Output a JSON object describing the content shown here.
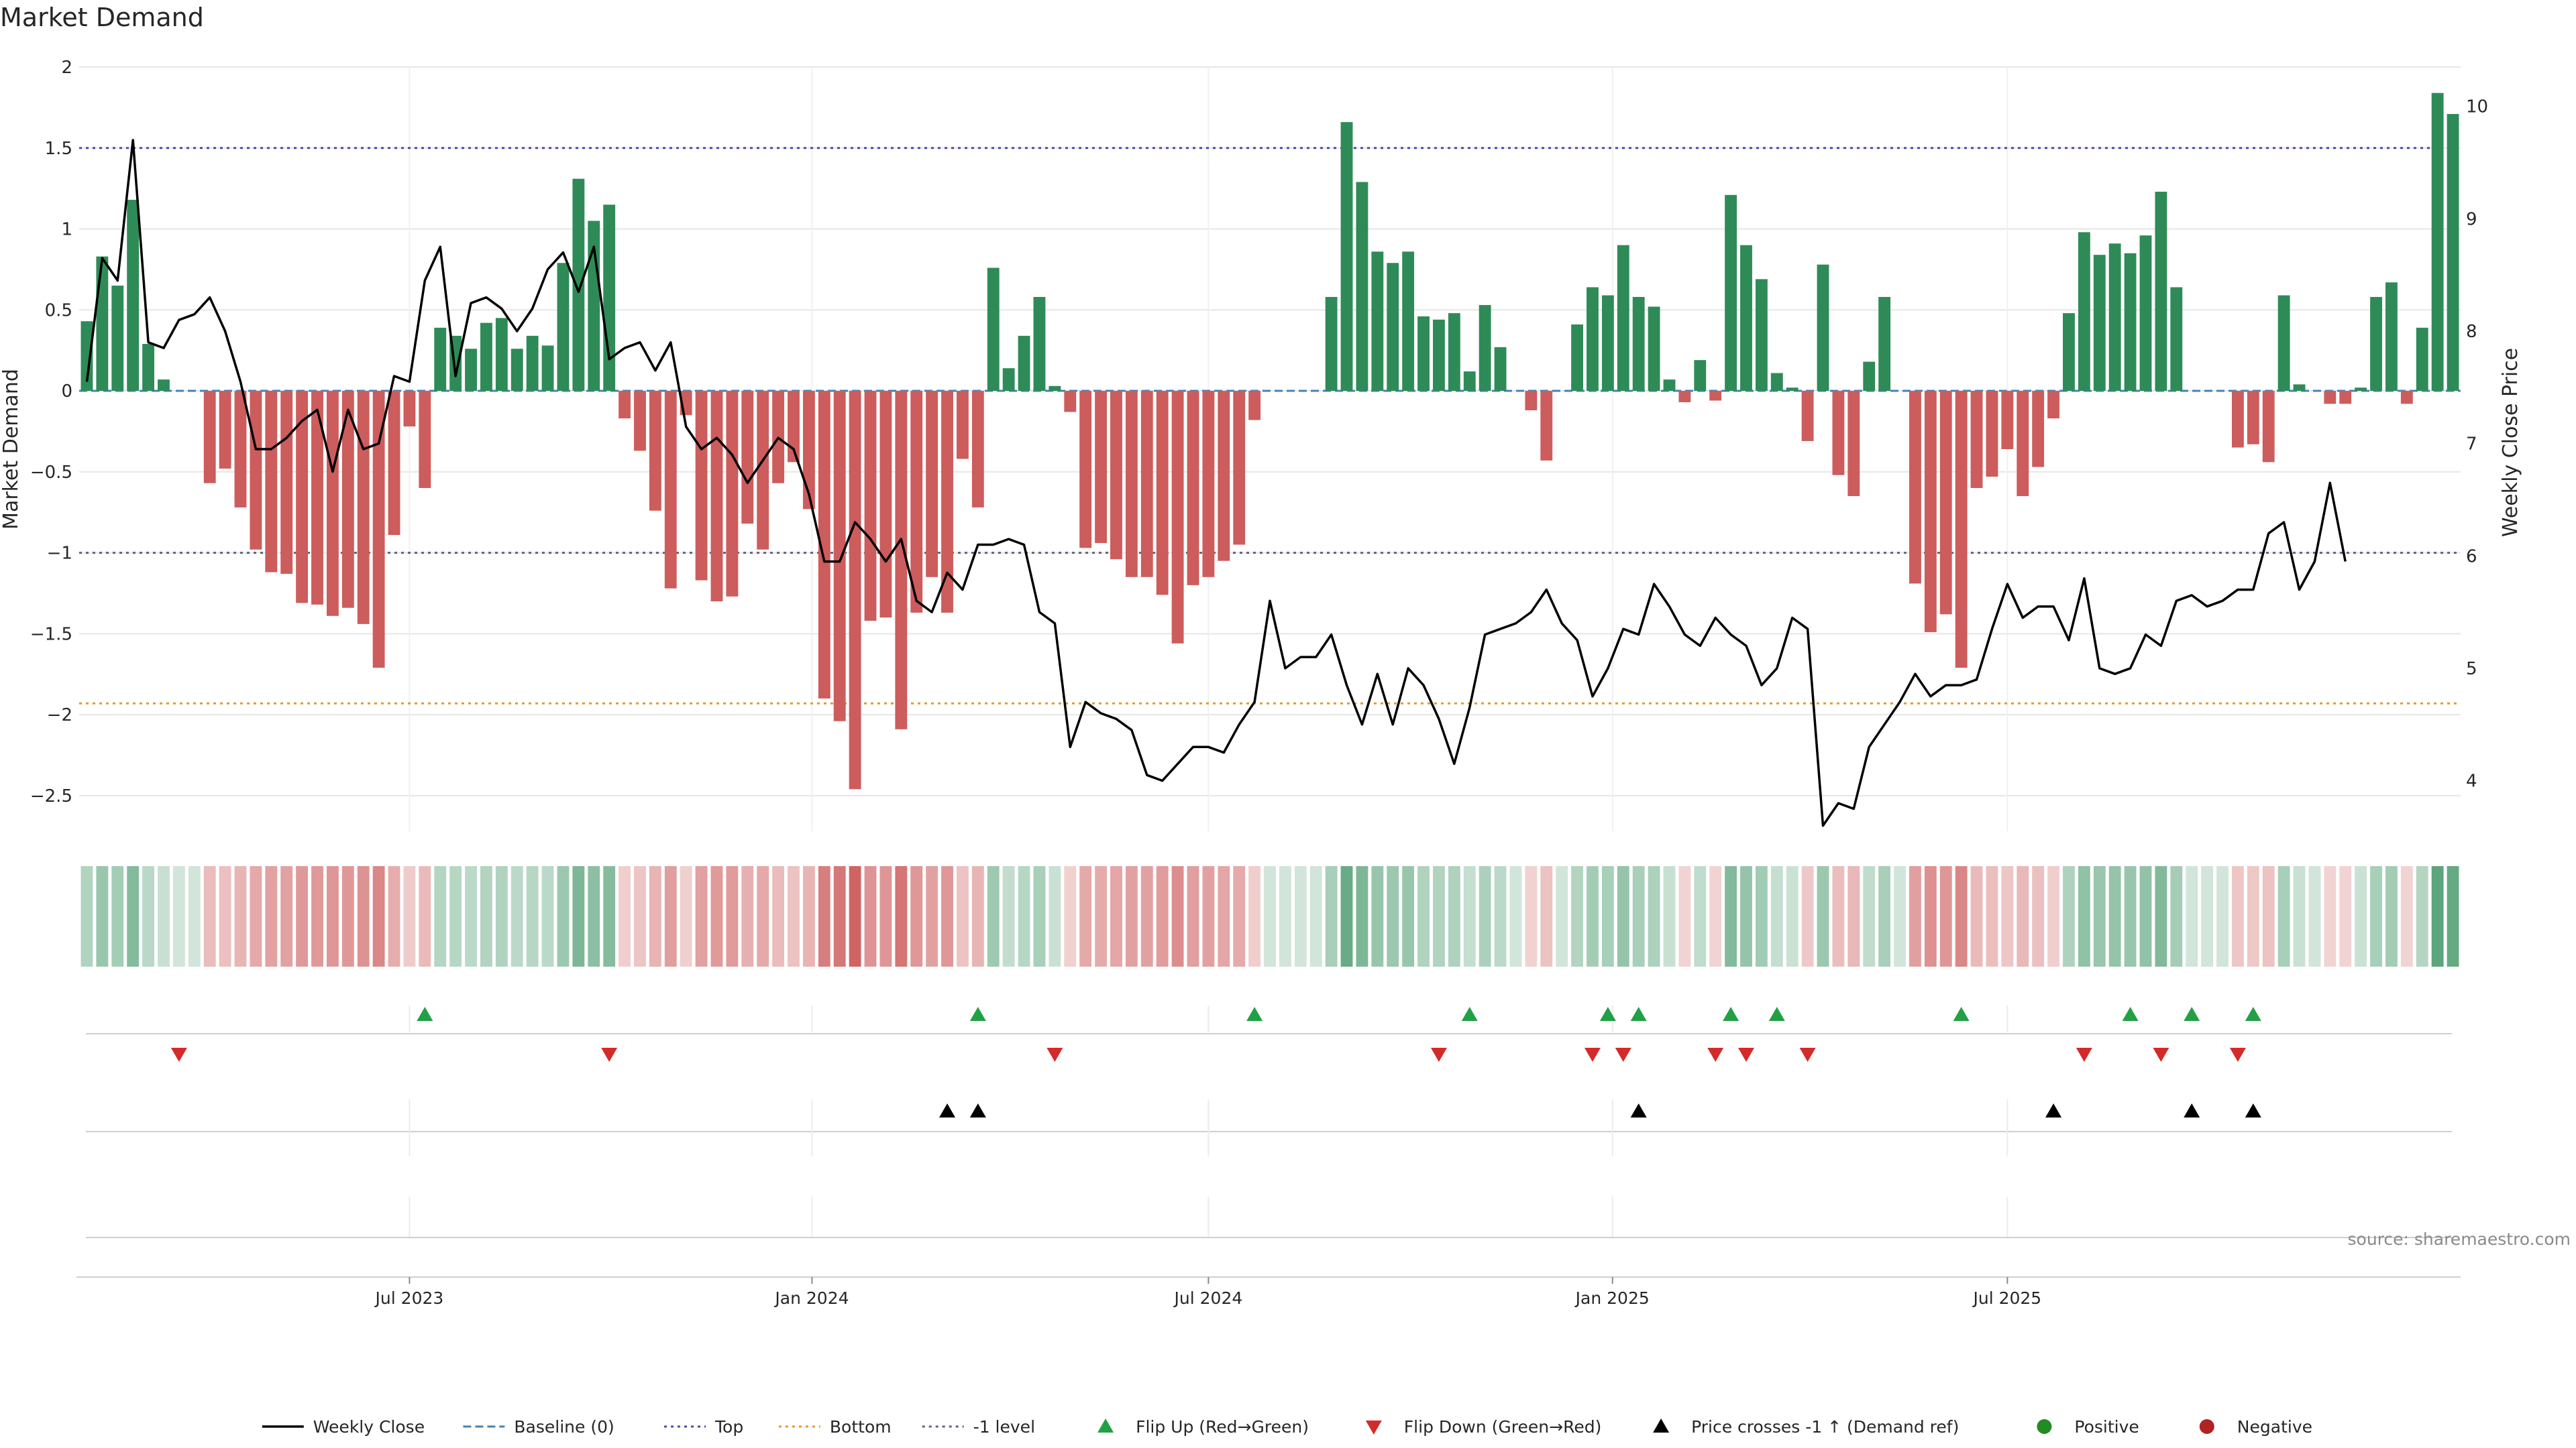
{
  "title": "Market Demand",
  "source": "source: sharemaestro.com",
  "colors": {
    "positive": "#2e8b57",
    "negative": "#cd5c5c",
    "price": "#000000",
    "baseline": "#4682b4",
    "top": "#4b4bb0",
    "bottom": "#e39a2b",
    "minus1": "#606080",
    "flip_up": "#22a045",
    "flip_down": "#d42a2a",
    "cross": "#000000",
    "grid": "#e6e6e6"
  },
  "chart_data": {
    "type": "bar",
    "title": "Market Demand",
    "ylabel_left": "Market Demand",
    "ylabel_right": "Weekly Close Price",
    "ylim_left": [
      -2.72,
      2.0
    ],
    "ylim_right": [
      3.55,
      10.35
    ],
    "yticks_left": [
      2,
      1.5,
      1,
      0.5,
      0,
      -0.5,
      -1,
      -1.5,
      -2,
      -2.5
    ],
    "ytick_labels_left": [
      "2",
      "1.5",
      "1",
      "0.5",
      "0",
      "−0.5",
      "−1",
      "−1.5",
      "−2",
      "−2.5"
    ],
    "yticks_right": [
      10,
      9,
      8,
      7,
      6,
      5,
      4
    ],
    "ytick_labels_right": [
      "10",
      "9",
      "8",
      "7",
      "6",
      "5",
      "4"
    ],
    "reference_lines": {
      "baseline": 0,
      "top": 1.5,
      "bottom": -1.93,
      "minus_one": -1
    },
    "x_ticks": [
      {
        "index": 21.5,
        "label": "Jul 2023"
      },
      {
        "index": 47.7,
        "label": "Jan 2024"
      },
      {
        "index": 73.5,
        "label": "Jul 2024"
      },
      {
        "index": 99.8,
        "label": "Jan 2025"
      },
      {
        "index": 125.5,
        "label": "Jul 2025"
      }
    ],
    "demand": [
      0.43,
      0.83,
      0.65,
      1.18,
      0.29,
      0.07,
      0,
      0,
      -0.57,
      -0.48,
      -0.72,
      -0.98,
      -1.12,
      -1.13,
      -1.31,
      -1.32,
      -1.39,
      -1.34,
      -1.44,
      -1.71,
      -0.89,
      -0.22,
      -0.6,
      0.39,
      0.34,
      0.26,
      0.42,
      0.45,
      0.26,
      0.34,
      0.28,
      0.79,
      1.31,
      1.05,
      1.15,
      -0.17,
      -0.37,
      -0.74,
      -1.22,
      -0.15,
      -1.17,
      -1.3,
      -1.27,
      -0.82,
      -0.98,
      -0.57,
      -0.44,
      -0.73,
      -1.9,
      -2.04,
      -2.46,
      -1.42,
      -1.4,
      -2.09,
      -1.37,
      -1.15,
      -1.37,
      -0.42,
      -0.72,
      0.76,
      0.14,
      0.34,
      0.58,
      0.03,
      -0.13,
      -0.97,
      -0.94,
      -1.04,
      -1.15,
      -1.15,
      -1.26,
      -1.56,
      -1.2,
      -1.15,
      -1.05,
      -0.95,
      -0.18,
      0,
      0,
      0,
      0,
      0.58,
      1.66,
      1.29,
      0.86,
      0.79,
      0.86,
      0.46,
      0.44,
      0.48,
      0.12,
      0.53,
      0.27,
      0,
      -0.12,
      -0.43,
      0,
      0.41,
      0.64,
      0.59,
      0.9,
      0.58,
      0.52,
      0.07,
      -0.07,
      0.19,
      -0.06,
      1.21,
      0.9,
      0.69,
      0.11,
      0.02,
      -0.31,
      0.78,
      -0.52,
      -0.65,
      0.18,
      0.58,
      0,
      -1.19,
      -1.49,
      -1.38,
      -1.71,
      -0.6,
      -0.53,
      -0.36,
      -0.65,
      -0.47,
      -0.17,
      0.48,
      0.98,
      0.84,
      0.91,
      0.85,
      0.96,
      1.23,
      0.64,
      0,
      0,
      0,
      -0.35,
      -0.33,
      -0.44,
      0.59,
      0.04,
      0,
      -0.08,
      -0.08,
      0.02,
      0.58,
      0.67,
      -0.08,
      0.39,
      1.84,
      1.71
    ],
    "weekly_close": [
      7.55,
      8.65,
      8.45,
      9.7,
      7.9,
      7.85,
      8.1,
      8.15,
      8.3,
      8.0,
      7.55,
      6.95,
      6.95,
      7.05,
      7.2,
      7.3,
      6.75,
      7.3,
      6.95,
      7.0,
      7.6,
      7.55,
      8.45,
      8.75,
      7.6,
      8.25,
      8.3,
      8.2,
      8.0,
      8.2,
      8.55,
      8.7,
      8.35,
      8.75,
      7.75,
      7.85,
      7.9,
      7.65,
      7.9,
      7.15,
      6.95,
      7.05,
      6.9,
      6.65,
      6.85,
      7.05,
      6.95,
      6.55,
      5.95,
      5.95,
      6.3,
      6.15,
      5.95,
      6.15,
      5.6,
      5.5,
      5.85,
      5.7,
      6.1,
      6.1,
      6.15,
      6.1,
      5.5,
      5.4,
      4.3,
      4.7,
      4.6,
      4.55,
      4.45,
      4.05,
      4.0,
      4.15,
      4.3,
      4.3,
      4.25,
      4.5,
      4.7,
      5.6,
      5.0,
      5.1,
      5.1,
      5.3,
      4.85,
      4.5,
      4.95,
      4.5,
      5.0,
      4.85,
      4.55,
      4.15,
      4.65,
      5.3,
      5.35,
      5.4,
      5.5,
      5.7,
      5.4,
      5.25,
      4.75,
      5.0,
      5.35,
      5.3,
      5.75,
      5.55,
      5.3,
      5.2,
      5.45,
      5.3,
      5.2,
      4.85,
      5.0,
      5.45,
      5.35,
      3.6,
      3.8,
      3.75,
      4.3,
      4.5,
      4.7,
      4.95,
      4.75,
      4.85,
      4.85,
      4.9,
      5.35,
      5.75,
      5.45,
      5.55,
      5.55,
      5.25,
      5.8,
      5.0,
      4.95,
      5.0,
      5.3,
      5.2,
      5.6,
      5.65,
      5.55,
      5.6,
      5.7,
      5.7,
      6.2,
      6.3,
      5.7,
      5.95,
      6.65,
      5.95
    ],
    "flip_up": [
      22,
      58,
      76,
      90,
      99,
      101,
      107,
      110,
      122,
      133,
      137,
      141
    ],
    "flip_down": [
      6,
      34,
      63,
      88,
      98,
      100,
      106,
      108,
      112,
      130,
      135,
      140
    ],
    "price_cross_up": [
      56,
      58,
      101,
      128,
      137,
      141
    ],
    "legend": [
      {
        "key": "line",
        "label": "Weekly Close"
      },
      {
        "key": "baseline",
        "label": "Baseline (0)"
      },
      {
        "key": "top",
        "label": "Top"
      },
      {
        "key": "bottom",
        "label": "Bottom"
      },
      {
        "key": "minus1",
        "label": "-1 level"
      },
      {
        "key": "up",
        "label": "Flip Up (Red→Green)"
      },
      {
        "key": "down",
        "label": "Flip Down (Green→Red)"
      },
      {
        "key": "cross",
        "label": "Price crosses -1 ↑ (Demand ref)"
      },
      {
        "key": "pos",
        "label": "Positive"
      },
      {
        "key": "neg",
        "label": "Negative"
      }
    ]
  }
}
